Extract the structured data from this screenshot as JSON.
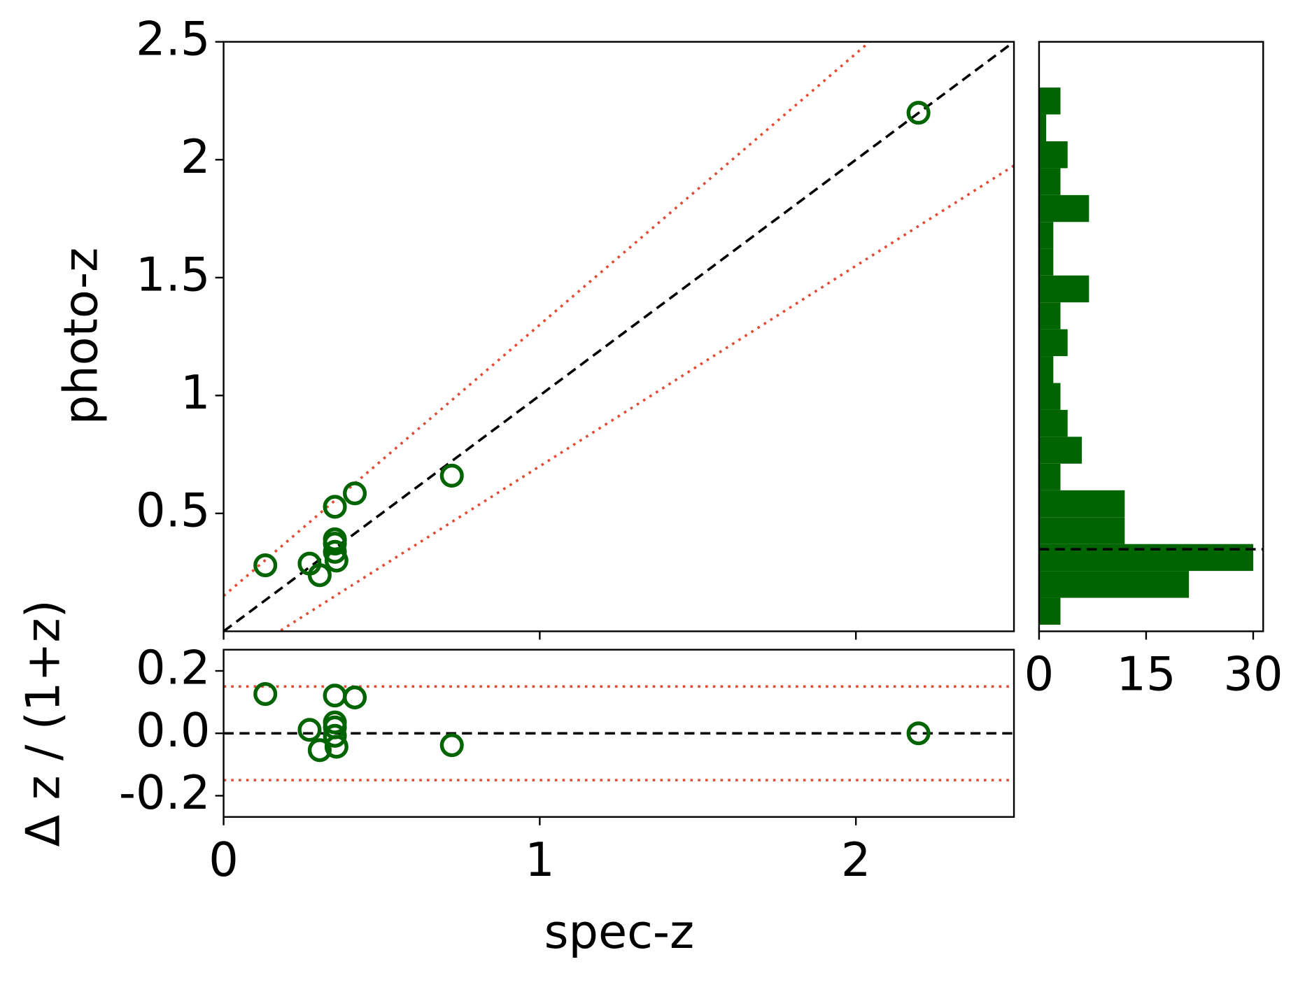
{
  "chart_data": [
    {
      "type": "scatter",
      "ylabel": "photo-z",
      "x": [
        0.132,
        0.272,
        0.304,
        0.352,
        0.415,
        0.352,
        0.352,
        0.352,
        0.357,
        0.722,
        2.198
      ],
      "values": [
        0.28,
        0.287,
        0.238,
        0.528,
        0.585,
        0.39,
        0.372,
        0.337,
        0.3,
        0.66,
        2.199
      ],
      "color": "#006400",
      "xlim": [
        0,
        2.5
      ],
      "ylim": [
        0,
        2.5
      ],
      "yticks": [
        0.5,
        1.0,
        1.5,
        2.0,
        2.5
      ],
      "identity_line": true,
      "outlier_limit": 0.15,
      "limit_color": "#e24a33"
    },
    {
      "type": "scatter",
      "xlabel": "spec-z",
      "ylabel": "Δ z / (1+z)",
      "x": [
        0.132,
        0.272,
        0.304,
        0.352,
        0.415,
        0.352,
        0.352,
        0.352,
        0.357,
        0.722,
        2.198
      ],
      "values": [
        0.126,
        0.011,
        -0.054,
        0.121,
        0.115,
        0.035,
        0.019,
        -0.008,
        -0.043,
        -0.038,
        0.0
      ],
      "color": "#006400",
      "xlim": [
        0,
        2.5
      ],
      "xticks": [
        0,
        1,
        2
      ],
      "ylim": [
        -0.268,
        0.268
      ],
      "yticks": [
        0.2,
        {
          "value": 0,
          "label": "0.0"
        },
        -0.2
      ],
      "zero_line": true,
      "outlier_limit": 0.15,
      "limit_color": "#e24a33"
    },
    {
      "type": "histogram",
      "orientation": "horizontal",
      "bins": [
        0.028,
        0.142,
        0.256,
        0.37,
        0.484,
        0.598,
        0.711,
        0.825,
        0.939,
        1.053,
        1.167,
        1.281,
        1.395,
        1.509,
        1.623,
        1.736,
        1.85,
        1.964,
        2.078,
        2.192,
        2.306
      ],
      "values": [
        3,
        21,
        30,
        12,
        12,
        3,
        6,
        4,
        3,
        2,
        4,
        3,
        7,
        2,
        2,
        7,
        3,
        4,
        1,
        3
      ],
      "color": "#006400",
      "xlim": [
        0,
        31.4
      ],
      "xticks": [
        0,
        15,
        30
      ],
      "ylim": [
        0,
        2.5
      ],
      "median": 0.348
    }
  ]
}
